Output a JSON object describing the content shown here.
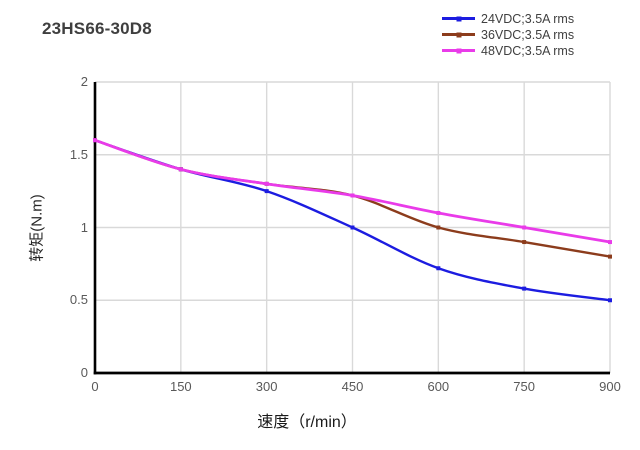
{
  "title": "23HS66-30D8",
  "colors": {
    "background": "#ffffff",
    "grid": "#d9d9d9",
    "axis": "#000000",
    "tick_label": "#595959",
    "title": "#3f3f3f",
    "legend_text": "#404040",
    "axis_title": "#262626"
  },
  "chart_data": {
    "type": "line",
    "title": "23HS66-30D8",
    "xlabel": "速度（r/min）",
    "ylabel": "转矩(N.m)",
    "x": [
      0,
      150,
      300,
      450,
      600,
      750,
      900
    ],
    "xlim": [
      0,
      900
    ],
    "ylim": [
      0,
      2
    ],
    "xticks": [
      0,
      150,
      300,
      450,
      600,
      750,
      900
    ],
    "yticks": [
      0,
      0.5,
      1,
      1.5,
      2
    ],
    "grid": true,
    "legend_position": "top-right",
    "marker": "square",
    "series": [
      {
        "name": "24VDC;3.5A rms",
        "color": "#1c1ce0",
        "width": 2.4,
        "values": [
          1.6,
          1.4,
          1.25,
          1.0,
          0.72,
          0.58,
          0.5
        ]
      },
      {
        "name": "36VDC;3.5A rms",
        "color": "#8c3c1c",
        "width": 2.4,
        "values": [
          1.6,
          1.4,
          1.3,
          1.22,
          1.0,
          0.9,
          0.8
        ]
      },
      {
        "name": "48VDC;3.5A rms",
        "color": "#e93be9",
        "width": 2.8,
        "values": [
          1.6,
          1.4,
          1.3,
          1.22,
          1.1,
          1.0,
          0.9
        ]
      }
    ]
  }
}
